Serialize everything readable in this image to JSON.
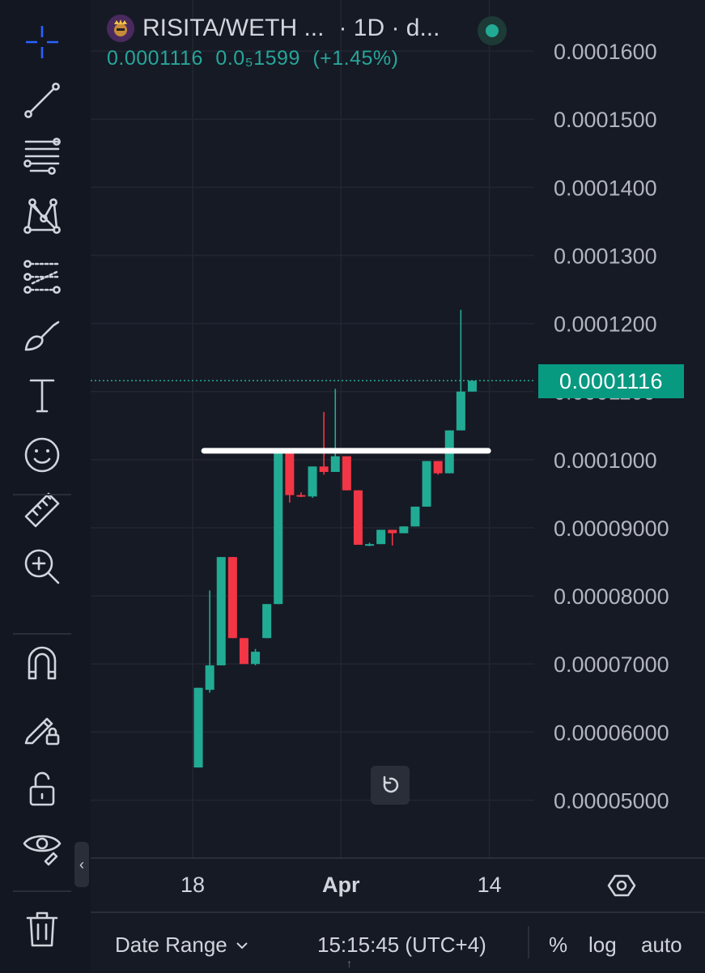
{
  "toolbar": {
    "tools": [
      {
        "name": "crosshair-icon",
        "active": true
      },
      {
        "name": "trend-line-icon"
      },
      {
        "name": "fib-retracement-icon"
      },
      {
        "name": "pattern-icon"
      },
      {
        "name": "prediction-icon"
      },
      {
        "name": "brush-icon"
      },
      {
        "name": "text-icon"
      },
      {
        "name": "emoji-icon"
      },
      {
        "name": "ruler-icon"
      },
      {
        "name": "zoom-in-icon"
      },
      {
        "name": "magnet-icon"
      },
      {
        "name": "lock-drawings-icon"
      },
      {
        "name": "unlock-icon"
      },
      {
        "name": "hide-drawings-icon"
      },
      {
        "name": "trash-icon"
      }
    ],
    "collapse_glyph": "‹"
  },
  "legend": {
    "symbol": "RISITA/WETH ...",
    "interval": "· 1D · d...",
    "price": "0.0001116",
    "change_abs": "0.0₅1599",
    "change_pct": "(+1.45%)"
  },
  "last_price_tag": "0.0001116",
  "colors": {
    "up": "#22ab94",
    "down": "#f23645",
    "background": "#161a25",
    "grid": "#232632",
    "accent": "#089981",
    "horizontal_line": "#ffffff"
  },
  "bottom_bar": {
    "date_range": "Date Range",
    "clock": "15:15:45 (UTC+4)",
    "percent": "%",
    "log": "log",
    "auto": "auto"
  },
  "chart_data": {
    "type": "candlestick",
    "interval": "1D",
    "symbol": "RISITA/WETH",
    "y_ticks": [
      "0.0001600",
      "0.0001500",
      "0.0001400",
      "0.0001300",
      "0.0001200",
      "0.0001100",
      "0.0001000",
      "0.00009000",
      "0.00008000",
      "0.00007000",
      "0.00006000",
      "0.00005000"
    ],
    "y_tick_values": [
      0.00016,
      0.00015,
      0.00014,
      0.00013,
      0.00012,
      0.00011,
      0.0001,
      9e-05,
      8e-05,
      7e-05,
      6e-05,
      5e-05
    ],
    "ylim": [
      4.15e-05,
      0.0001675
    ],
    "x_ticks": [
      {
        "label": "18",
        "index": 0,
        "bold": false
      },
      {
        "label": "Apr",
        "index": 13,
        "bold": true
      },
      {
        "label": "14",
        "index": 26,
        "bold": false
      }
    ],
    "candles": [
      {
        "o": 5.48e-05,
        "h": 6.65e-05,
        "l": 5.48e-05,
        "c": 6.65e-05
      },
      {
        "o": 6.62e-05,
        "h": 8.08e-05,
        "l": 6.58e-05,
        "c": 6.98e-05
      },
      {
        "o": 6.98e-05,
        "h": 8.57e-05,
        "l": 6.98e-05,
        "c": 8.57e-05
      },
      {
        "o": 8.57e-05,
        "h": 8.57e-05,
        "l": 7.38e-05,
        "c": 7.38e-05
      },
      {
        "o": 7.38e-05,
        "h": 7.38e-05,
        "l": 7e-05,
        "c": 7e-05
      },
      {
        "o": 7e-05,
        "h": 7.22e-05,
        "l": 6.98e-05,
        "c": 7.18e-05
      },
      {
        "o": 7.38e-05,
        "h": 7.88e-05,
        "l": 7.38e-05,
        "c": 7.88e-05
      },
      {
        "o": 7.88e-05,
        "h": 0.000101,
        "l": 7.88e-05,
        "c": 0.000101
      },
      {
        "o": 0.000101,
        "h": 0.000101,
        "l": 9.37e-05,
        "c": 9.48e-05
      },
      {
        "o": 9.48e-05,
        "h": 9.52e-05,
        "l": 9.45e-05,
        "c": 9.46e-05
      },
      {
        "o": 9.46e-05,
        "h": 9.9e-05,
        "l": 9.44e-05,
        "c": 9.9e-05
      },
      {
        "o": 9.9e-05,
        "h": 0.000107,
        "l": 9.78e-05,
        "c": 9.82e-05
      },
      {
        "o": 9.82e-05,
        "h": 0.0001104,
        "l": 9.82e-05,
        "c": 0.0001005
      },
      {
        "o": 0.0001005,
        "h": 0.0001005,
        "l": 9.55e-05,
        "c": 9.55e-05
      },
      {
        "o": 9.55e-05,
        "h": 9.55e-05,
        "l": 8.75e-05,
        "c": 8.75e-05
      },
      {
        "o": 8.75e-05,
        "h": 8.78e-05,
        "l": 8.73e-05,
        "c": 8.76e-05
      },
      {
        "o": 8.76e-05,
        "h": 8.97e-05,
        "l": 8.76e-05,
        "c": 8.97e-05
      },
      {
        "o": 8.97e-05,
        "h": 8.97e-05,
        "l": 8.74e-05,
        "c": 8.92e-05
      },
      {
        "o": 8.92e-05,
        "h": 9.02e-05,
        "l": 8.92e-05,
        "c": 9.02e-05
      },
      {
        "o": 9.02e-05,
        "h": 9.31e-05,
        "l": 9.02e-05,
        "c": 9.31e-05
      },
      {
        "o": 9.31e-05,
        "h": 9.98e-05,
        "l": 9.31e-05,
        "c": 9.98e-05
      },
      {
        "o": 9.98e-05,
        "h": 9.98e-05,
        "l": 9.78e-05,
        "c": 9.8e-05
      },
      {
        "o": 9.8e-05,
        "h": 0.0001043,
        "l": 9.8e-05,
        "c": 0.0001043
      },
      {
        "o": 0.0001043,
        "h": 0.000122,
        "l": 0.0001043,
        "c": 0.00011
      },
      {
        "o": 0.00011,
        "h": 0.0001116,
        "l": 0.00011,
        "c": 0.0001116
      }
    ],
    "horizontal_line": {
      "price": 0.0001013,
      "from_index": 1,
      "to_index": 26
    },
    "last_price": 0.0001116,
    "grid": true
  }
}
